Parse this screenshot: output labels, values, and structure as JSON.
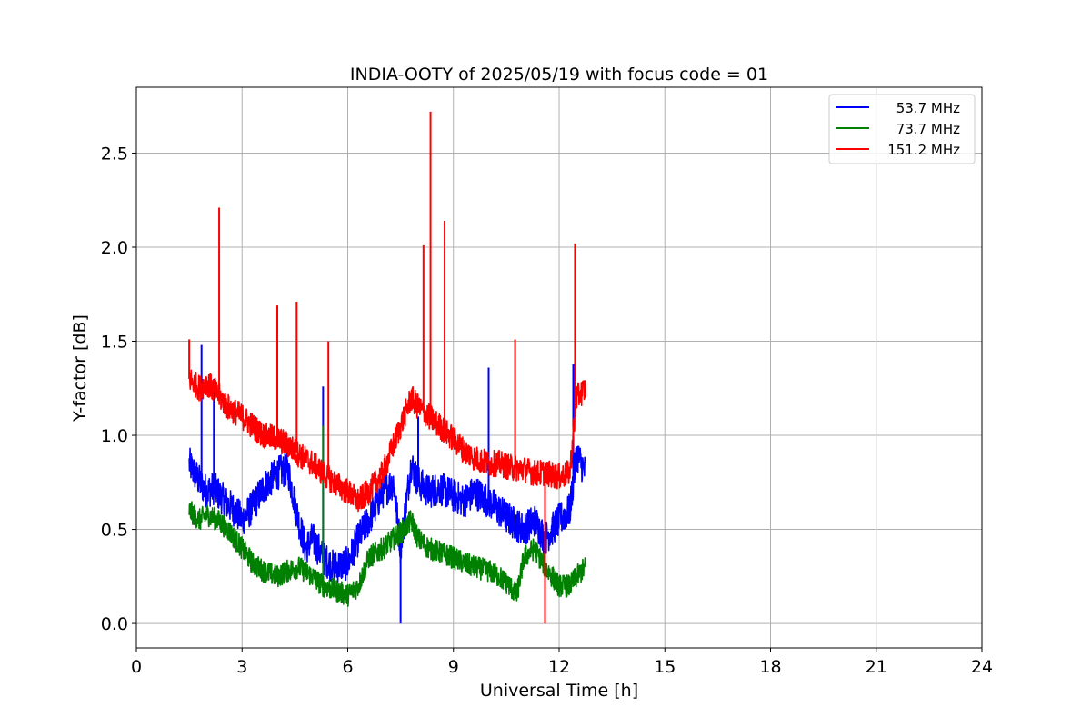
{
  "chart_data": {
    "type": "line",
    "title": "INDIA-OOTY of 2025/05/19 with focus code = 01",
    "xlabel": "Universal Time [h]",
    "ylabel": "Y-factor [dB]",
    "xlim": [
      0,
      24
    ],
    "ylim": [
      -0.13,
      2.85
    ],
    "x_ticks": [
      0,
      3,
      6,
      9,
      12,
      15,
      18,
      21,
      24
    ],
    "y_ticks": [
      0.0,
      0.5,
      1.0,
      1.5,
      2.0,
      2.5
    ],
    "x_tick_labels": [
      "0",
      "3",
      "6",
      "9",
      "12",
      "15",
      "18",
      "21",
      "24"
    ],
    "y_tick_labels": [
      "0.0",
      "0.5",
      "1.0",
      "1.5",
      "2.0",
      "2.5"
    ],
    "grid": true,
    "legend_position": "top-right",
    "series": [
      {
        "name": "53.7 MHz",
        "color": "#0000ff",
        "x": [
          1.5,
          1.8,
          2.0,
          2.2,
          2.5,
          2.8,
          3.0,
          3.3,
          3.6,
          4.0,
          4.3,
          4.6,
          4.8,
          5.0,
          5.3,
          5.6,
          6.0,
          6.3,
          6.6,
          7.0,
          7.3,
          7.5,
          7.8,
          8.0,
          8.3,
          8.6,
          9.0,
          9.3,
          9.6,
          10.0,
          10.3,
          10.6,
          11.0,
          11.3,
          11.6,
          12.0,
          12.3,
          12.5,
          12.75
        ],
        "y": [
          0.85,
          0.75,
          0.7,
          0.72,
          0.65,
          0.6,
          0.55,
          0.62,
          0.72,
          0.8,
          0.82,
          0.55,
          0.4,
          0.45,
          0.35,
          0.3,
          0.32,
          0.45,
          0.55,
          0.7,
          0.75,
          0.4,
          0.85,
          0.75,
          0.7,
          0.72,
          0.68,
          0.65,
          0.7,
          0.65,
          0.6,
          0.55,
          0.5,
          0.55,
          0.45,
          0.55,
          0.6,
          0.9,
          0.8
        ],
        "spikes": [
          {
            "x": 1.85,
            "y": 1.48
          },
          {
            "x": 2.2,
            "y": 1.3
          },
          {
            "x": 5.3,
            "y": 1.26
          },
          {
            "x": 7.5,
            "y": 0.0
          },
          {
            "x": 8.0,
            "y": 1.1
          },
          {
            "x": 10.0,
            "y": 1.36
          },
          {
            "x": 12.4,
            "y": 1.38
          }
        ]
      },
      {
        "name": "73.7 MHz",
        "color": "#008000",
        "x": [
          1.5,
          1.8,
          2.0,
          2.3,
          2.6,
          3.0,
          3.3,
          3.6,
          4.0,
          4.3,
          4.6,
          5.0,
          5.3,
          5.6,
          6.0,
          6.3,
          6.6,
          7.0,
          7.3,
          7.6,
          7.8,
          8.0,
          8.3,
          8.6,
          9.0,
          9.3,
          9.6,
          10.0,
          10.3,
          10.6,
          10.8,
          11.0,
          11.3,
          11.6,
          12.0,
          12.3,
          12.5,
          12.75
        ],
        "y": [
          0.6,
          0.55,
          0.58,
          0.55,
          0.5,
          0.4,
          0.32,
          0.28,
          0.25,
          0.28,
          0.3,
          0.25,
          0.2,
          0.18,
          0.15,
          0.2,
          0.35,
          0.4,
          0.45,
          0.5,
          0.55,
          0.45,
          0.4,
          0.38,
          0.35,
          0.32,
          0.3,
          0.28,
          0.25,
          0.2,
          0.15,
          0.35,
          0.4,
          0.3,
          0.2,
          0.2,
          0.25,
          0.3
        ],
        "spikes": [
          {
            "x": 5.3,
            "y": 1.05
          }
        ]
      },
      {
        "name": "151.2 MHz",
        "color": "#ff0000",
        "x": [
          1.5,
          1.8,
          2.0,
          2.3,
          2.6,
          3.0,
          3.3,
          3.6,
          4.0,
          4.3,
          4.6,
          5.0,
          5.3,
          5.6,
          6.0,
          6.3,
          6.6,
          7.0,
          7.3,
          7.6,
          7.8,
          8.0,
          8.3,
          8.6,
          9.0,
          9.3,
          9.6,
          10.0,
          10.3,
          10.6,
          11.0,
          11.3,
          11.6,
          12.0,
          12.3,
          12.5,
          12.75
        ],
        "y": [
          1.3,
          1.25,
          1.28,
          1.22,
          1.15,
          1.1,
          1.05,
          1.0,
          0.98,
          0.95,
          0.9,
          0.85,
          0.8,
          0.75,
          0.7,
          0.65,
          0.7,
          0.8,
          0.95,
          1.1,
          1.2,
          1.15,
          1.1,
          1.05,
          0.98,
          0.92,
          0.88,
          0.85,
          0.85,
          0.83,
          0.82,
          0.8,
          0.8,
          0.78,
          0.8,
          1.2,
          1.25
        ],
        "spikes": [
          {
            "x": 1.5,
            "y": 1.51
          },
          {
            "x": 2.35,
            "y": 2.21
          },
          {
            "x": 4.0,
            "y": 1.69
          },
          {
            "x": 4.55,
            "y": 1.71
          },
          {
            "x": 5.45,
            "y": 1.5
          },
          {
            "x": 8.15,
            "y": 2.01
          },
          {
            "x": 8.35,
            "y": 2.72
          },
          {
            "x": 8.75,
            "y": 2.14
          },
          {
            "x": 10.75,
            "y": 1.51
          },
          {
            "x": 11.6,
            "y": 0.0
          },
          {
            "x": 12.45,
            "y": 2.02
          }
        ]
      }
    ]
  }
}
